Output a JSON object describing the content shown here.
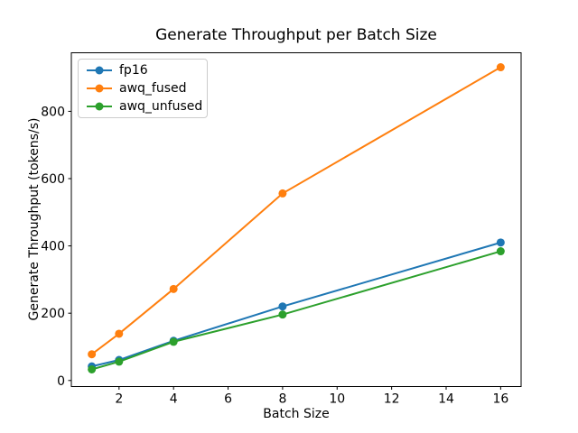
{
  "chart_data": {
    "type": "line",
    "title": "Generate Throughput per Batch Size",
    "xlabel": "Batch Size",
    "ylabel": "Generate Throughput (tokens/s)",
    "x": [
      1,
      2,
      4,
      8,
      16
    ],
    "series": [
      {
        "name": "fp16",
        "color": "#1f77b4",
        "values": [
          42,
          61,
          118,
          220,
          410
        ]
      },
      {
        "name": "awq_fused",
        "color": "#ff7f0e",
        "values": [
          78,
          139,
          272,
          556,
          931
        ]
      },
      {
        "name": "awq_unfused",
        "color": "#2ca02c",
        "values": [
          33,
          56,
          115,
          196,
          384
        ]
      }
    ],
    "xlim": [
      0.25,
      16.75
    ],
    "ylim": [
      -18,
      974
    ],
    "xticks": [
      2,
      4,
      6,
      8,
      10,
      12,
      14,
      16
    ],
    "yticks": [
      0,
      200,
      400,
      600,
      800
    ],
    "grid": false,
    "legend_position": "upper left",
    "marker": "o",
    "text_color": "#000000",
    "spine_color": "#000000",
    "legend_border_color": "#cccccc"
  }
}
